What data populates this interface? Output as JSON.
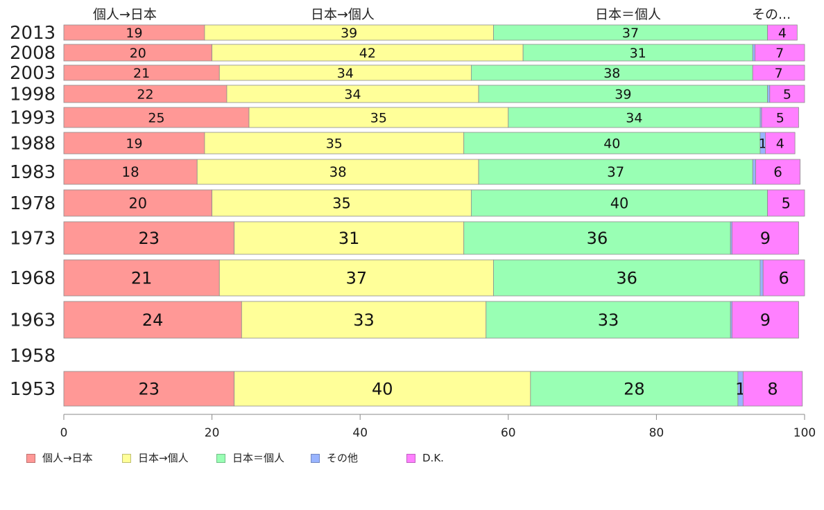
{
  "chart_data": {
    "type": "bar",
    "orientation": "horizontal",
    "stacked": true,
    "title": "",
    "xlabel": "",
    "ylabel": "",
    "xlim": [
      0,
      100
    ],
    "x_ticks": [
      0,
      20,
      40,
      60,
      80,
      100
    ],
    "categories": [
      "2013",
      "2008",
      "2003",
      "1998",
      "1993",
      "1988",
      "1983",
      "1978",
      "1973",
      "1968",
      "1963",
      "1958",
      "1953"
    ],
    "series": [
      {
        "name": "個人→日本",
        "color": "#ff9896",
        "values": [
          19,
          20,
          21,
          22,
          25,
          19,
          18,
          20,
          23,
          21,
          24,
          null,
          23
        ],
        "labels": [
          "19",
          "20",
          "21",
          "22",
          "25",
          "19",
          "18",
          "20",
          "23",
          "21",
          "24",
          "",
          "23"
        ]
      },
      {
        "name": "日本→個人",
        "color": "#ffff99",
        "values": [
          39,
          42,
          34,
          34,
          35,
          35,
          38,
          35,
          31,
          37,
          33,
          null,
          40
        ],
        "labels": [
          "39",
          "42",
          "34",
          "34",
          "35",
          "35",
          "38",
          "35",
          "31",
          "37",
          "33",
          "",
          "40"
        ]
      },
      {
        "name": "日本＝個人",
        "color": "#99ffb4",
        "values": [
          37,
          31,
          38,
          39,
          34,
          40,
          37,
          40,
          36,
          36,
          33,
          null,
          28
        ],
        "labels": [
          "37",
          "31",
          "38",
          "39",
          "34",
          "40",
          "37",
          "40",
          "36",
          "36",
          "33",
          "",
          "28"
        ]
      },
      {
        "name": "その他",
        "color": "#99b4ff",
        "values": [
          0,
          0.3,
          0,
          0.3,
          0.2,
          0.7,
          0.4,
          0,
          0.2,
          0.4,
          0.2,
          null,
          0.7
        ],
        "labels": [
          "",
          "",
          "",
          "",
          "",
          "1",
          "",
          "",
          "",
          "",
          "",
          "",
          "1"
        ]
      },
      {
        "name": "D.K.",
        "color": "#ff80ff",
        "values": [
          4,
          7,
          7,
          5,
          5,
          4,
          6,
          5,
          9,
          6,
          9,
          null,
          8
        ],
        "labels": [
          "4",
          "7",
          "7",
          "5",
          "5",
          "4",
          "6",
          "5",
          "9",
          "6",
          "9",
          "",
          "8"
        ]
      }
    ],
    "column_headers": [
      "個人→日本",
      "日本→個人",
      "日本＝個人",
      "その..."
    ],
    "legend_position": "bottom"
  }
}
